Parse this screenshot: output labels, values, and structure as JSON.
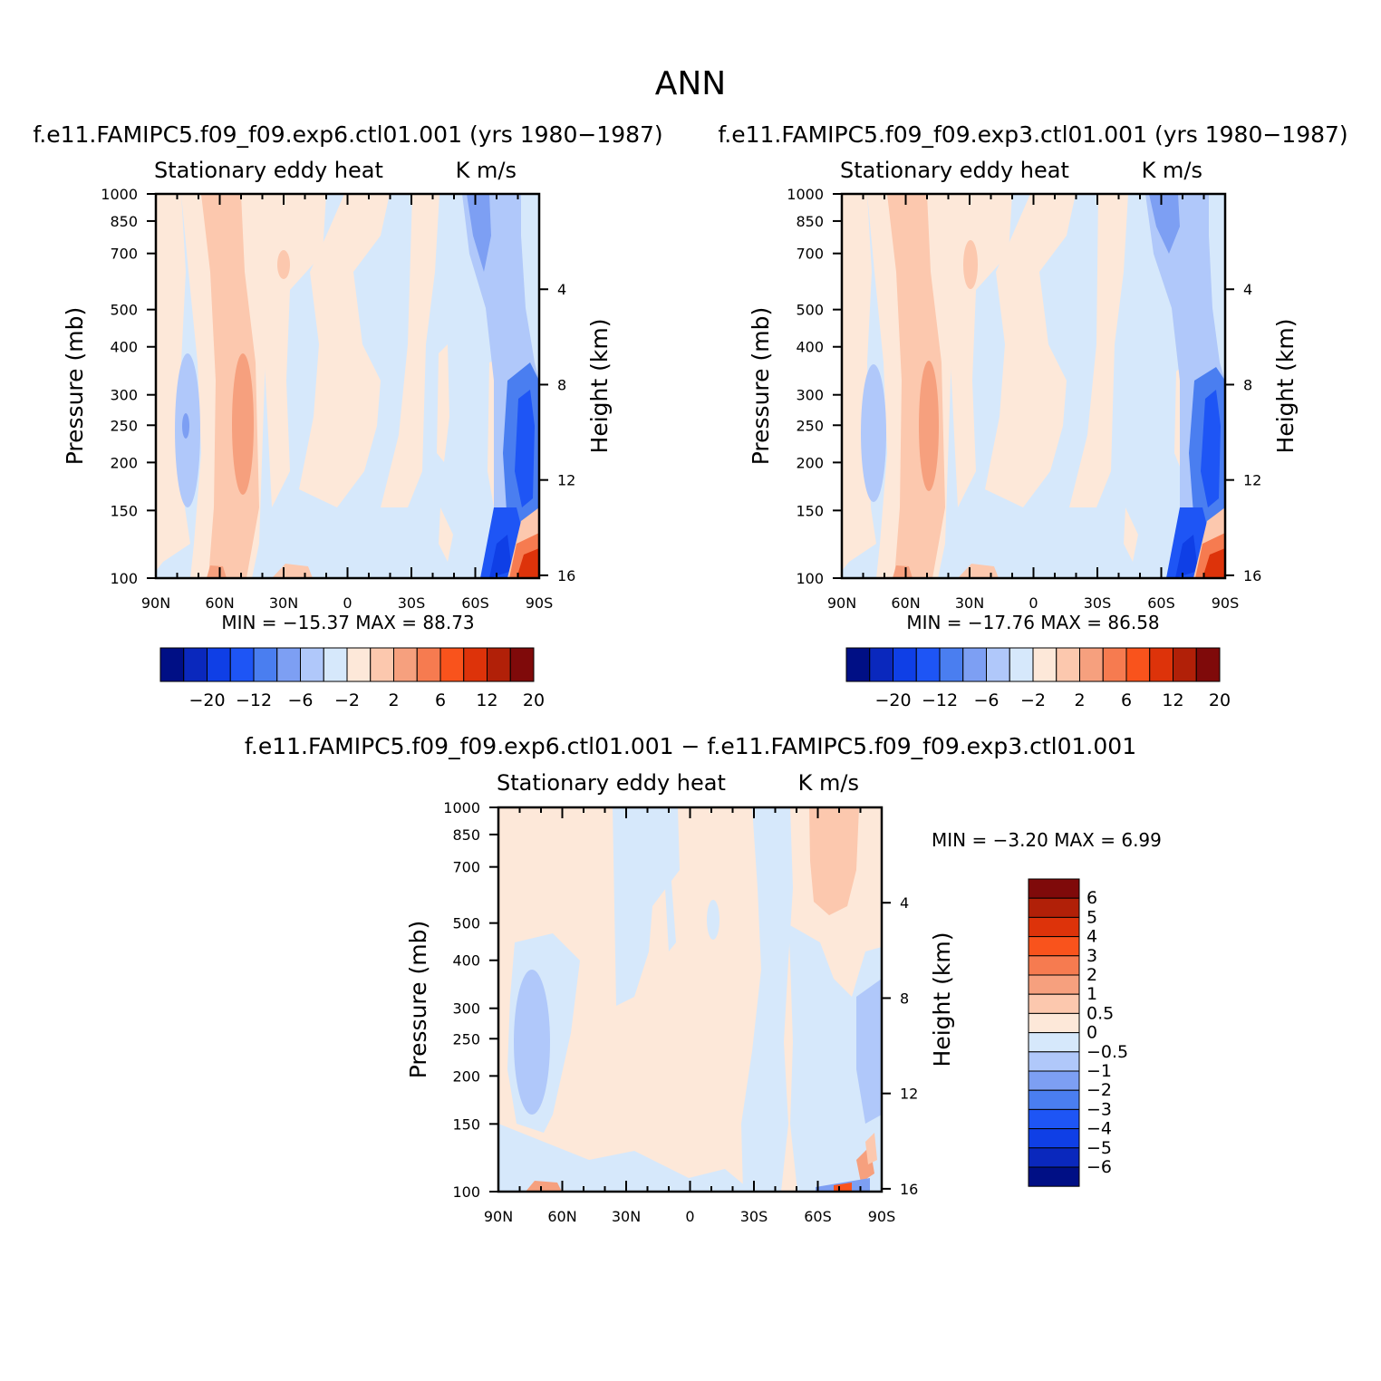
{
  "figure": {
    "title": "ANN"
  },
  "colors": {
    "blue_scale": [
      "#000f85",
      "#0a28bd",
      "#0f3fe6",
      "#1e55f5",
      "#4a7ef0",
      "#7d9ff3",
      "#b0c8fa",
      "#d6e8fb"
    ],
    "red_scale": [
      "#fde8d9",
      "#fcc8ae",
      "#f6a07e",
      "#f67b50",
      "#f9531c",
      "#dd330a",
      "#b12008",
      "#7f0a0a"
    ]
  },
  "panels": [
    {
      "title": "f.e11.FAMIPC5.f09_f09.exp6.ctl01.001 (yrs 1980−1987)",
      "left_sub": "Stationary eddy heat",
      "right_sub": "K m/s",
      "ylabel": "Pressure (mb)",
      "y2label": "Height (km)",
      "min_max": "MIN = −15.37   MAX =   88.73"
    },
    {
      "title": "f.e11.FAMIPC5.f09_f09.exp3.ctl01.001 (yrs 1980−1987)",
      "left_sub": "Stationary eddy heat",
      "right_sub": "K m/s",
      "ylabel": "Pressure (mb)",
      "y2label": "Height (km)",
      "min_max": "MIN = −17.76   MAX =   86.58"
    },
    {
      "title": "f.e11.FAMIPC5.f09_f09.exp6.ctl01.001 − f.e11.FAMIPC5.f09_f09.exp3.ctl01.001",
      "left_sub": "Stationary eddy heat",
      "right_sub": "K m/s",
      "ylabel": "Pressure (mb)",
      "y2label": "Height (km)",
      "min_max": "MIN =   −3.20   MAX =     6.99"
    }
  ],
  "colorbars": {
    "horizontal_labels": [
      "−20",
      "−12",
      "−6",
      "−2",
      "2",
      "6",
      "12",
      "20"
    ],
    "vertical_labels": [
      "6",
      "5",
      "4",
      "3",
      "2",
      "1",
      "0.5",
      "0",
      "−0.5",
      "−1",
      "−2",
      "−3",
      "−4",
      "−5",
      "−6"
    ]
  },
  "chart_data": [
    {
      "type": "heatmap",
      "title": "f.e11.FAMIPC5.f09_f09.exp6.ctl01.001 (yrs 1980−1987)",
      "variable": "Stationary eddy heat",
      "units": "K m/s",
      "xlabel": "",
      "ylabel": "Pressure (mb)",
      "y2label": "Height (km)",
      "x_ticks": [
        "90N",
        "60N",
        "30N",
        "0",
        "30S",
        "60S",
        "90S"
      ],
      "y_ticks": [
        100,
        150,
        200,
        250,
        300,
        400,
        500,
        700,
        850,
        1000
      ],
      "y2_ticks": [
        16,
        12,
        8,
        4
      ],
      "ylim": [
        1000,
        100
      ],
      "y_scale": "log",
      "min": -15.37,
      "max": 88.73,
      "levels": [
        -20,
        -16,
        -12,
        -8,
        -6,
        -4,
        -2,
        -1,
        2,
        4,
        6,
        8,
        12,
        16,
        20
      ]
    },
    {
      "type": "heatmap",
      "title": "f.e11.FAMIPC5.f09_f09.exp3.ctl01.001 (yrs 1980−1987)",
      "variable": "Stationary eddy heat",
      "units": "K m/s",
      "xlabel": "",
      "ylabel": "Pressure (mb)",
      "y2label": "Height (km)",
      "x_ticks": [
        "90N",
        "60N",
        "30N",
        "0",
        "30S",
        "60S",
        "90S"
      ],
      "y_ticks": [
        100,
        150,
        200,
        250,
        300,
        400,
        500,
        700,
        850,
        1000
      ],
      "y2_ticks": [
        16,
        12,
        8,
        4
      ],
      "ylim": [
        1000,
        100
      ],
      "y_scale": "log",
      "min": -17.76,
      "max": 86.58,
      "levels": [
        -20,
        -16,
        -12,
        -8,
        -6,
        -4,
        -2,
        -1,
        2,
        4,
        6,
        8,
        12,
        16,
        20
      ]
    },
    {
      "type": "heatmap",
      "title": "f.e11.FAMIPC5.f09_f09.exp6.ctl01.001 − f.e11.FAMIPC5.f09_f09.exp3.ctl01.001",
      "variable": "Stationary eddy heat",
      "units": "K m/s",
      "xlabel": "",
      "ylabel": "Pressure (mb)",
      "y2label": "Height (km)",
      "x_ticks": [
        "90N",
        "60N",
        "30N",
        "0",
        "30S",
        "60S",
        "90S"
      ],
      "y_ticks": [
        100,
        150,
        200,
        250,
        300,
        400,
        500,
        700,
        850,
        1000
      ],
      "y2_ticks": [
        16,
        12,
        8,
        4
      ],
      "ylim": [
        1000,
        100
      ],
      "y_scale": "log",
      "min": -3.2,
      "max": 6.99,
      "levels": [
        -6,
        -5,
        -4,
        -3,
        -2,
        -1,
        -0.5,
        0,
        0.5,
        1,
        2,
        3,
        4,
        5,
        6
      ]
    }
  ]
}
